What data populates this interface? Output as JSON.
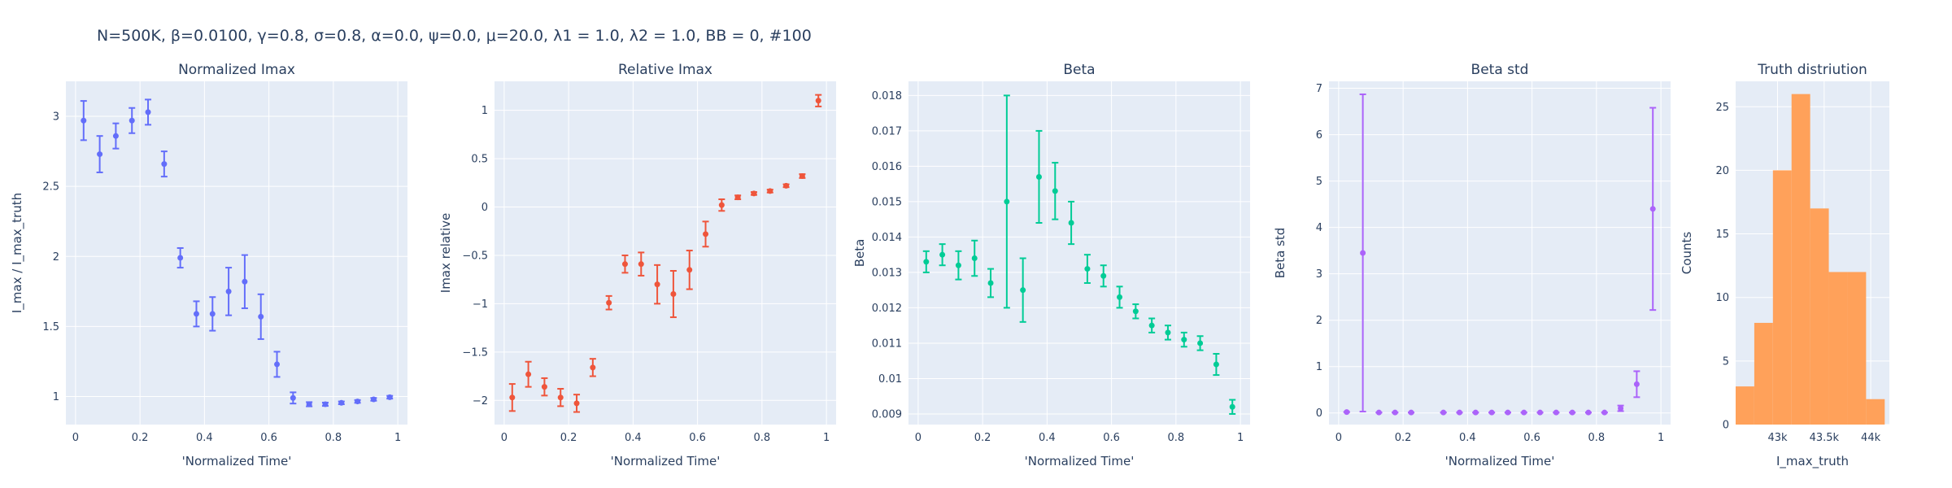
{
  "figure": {
    "title": "N=500K, β=0.0100, γ=0.8, σ=0.8,  α=0.0, ψ=0.0, μ=20.0, λ1 = 1.0, λ2 = 1.0, BB = 0, #100"
  },
  "chart_data": [
    {
      "type": "scatter",
      "title": "Normalized Imax",
      "xlabel": "'Normalized Time'",
      "ylabel": "I_max / I_max_truth",
      "color": "#636efa",
      "xlim": [
        -0.03,
        1.03
      ],
      "ylim": [
        0.8,
        3.25
      ],
      "xticks": [
        0,
        0.2,
        0.4,
        0.6,
        0.8,
        1
      ],
      "xtick_labels": [
        "0",
        "0.2",
        "0.4",
        "0.6",
        "0.8",
        "1"
      ],
      "yticks": [
        1,
        1.5,
        2,
        2.5,
        3
      ],
      "ytick_labels": [
        "1",
        "1.5",
        "2",
        "2.5",
        "3"
      ],
      "x": [
        0.025,
        0.075,
        0.125,
        0.175,
        0.225,
        0.275,
        0.325,
        0.375,
        0.425,
        0.475,
        0.525,
        0.575,
        0.625,
        0.675,
        0.725,
        0.775,
        0.825,
        0.875,
        0.925,
        0.975
      ],
      "y": [
        2.97,
        2.73,
        2.86,
        2.97,
        3.03,
        2.66,
        1.99,
        1.59,
        1.59,
        1.75,
        1.82,
        1.57,
        1.23,
        0.99,
        0.945,
        0.945,
        0.955,
        0.965,
        0.98,
        0.995
      ],
      "err": [
        0.14,
        0.13,
        0.09,
        0.09,
        0.09,
        0.09,
        0.07,
        0.09,
        0.12,
        0.17,
        0.19,
        0.16,
        0.09,
        0.04,
        0.015,
        0.012,
        0.01,
        0.01,
        0.01,
        0.01
      ]
    },
    {
      "type": "scatter",
      "title": "Relative Imax",
      "xlabel": "'Normalized Time'",
      "ylabel": "Imax relative",
      "color": "#ef553b",
      "xlim": [
        -0.03,
        1.03
      ],
      "ylim": [
        -2.25,
        1.3
      ],
      "xticks": [
        0,
        0.2,
        0.4,
        0.6,
        0.8,
        1
      ],
      "xtick_labels": [
        "0",
        "0.2",
        "0.4",
        "0.6",
        "0.8",
        "1"
      ],
      "yticks": [
        -2,
        -1.5,
        -1,
        -0.5,
        0,
        0.5,
        1
      ],
      "ytick_labels": [
        "−2",
        "−1.5",
        "−1",
        "−0.5",
        "0",
        "0.5",
        "1"
      ],
      "x": [
        0.025,
        0.075,
        0.125,
        0.175,
        0.225,
        0.275,
        0.325,
        0.375,
        0.425,
        0.475,
        0.525,
        0.575,
        0.625,
        0.675,
        0.725,
        0.775,
        0.825,
        0.875,
        0.925,
        0.975
      ],
      "y": [
        -1.97,
        -1.73,
        -1.86,
        -1.97,
        -2.03,
        -1.66,
        -0.99,
        -0.59,
        -0.59,
        -0.8,
        -0.9,
        -0.65,
        -0.28,
        0.02,
        0.1,
        0.14,
        0.165,
        0.22,
        0.32,
        1.1
      ],
      "err": [
        0.14,
        0.13,
        0.09,
        0.09,
        0.09,
        0.09,
        0.07,
        0.09,
        0.12,
        0.2,
        0.24,
        0.2,
        0.13,
        0.06,
        0.02,
        0.015,
        0.015,
        0.015,
        0.02,
        0.06
      ]
    },
    {
      "type": "scatter",
      "title": "Beta",
      "xlabel": "'Normalized Time'",
      "ylabel": "Beta",
      "color": "#00cc96",
      "xlim": [
        -0.03,
        1.03
      ],
      "ylim": [
        0.0087,
        0.0184
      ],
      "xticks": [
        0,
        0.2,
        0.4,
        0.6,
        0.8,
        1
      ],
      "xtick_labels": [
        "0",
        "0.2",
        "0.4",
        "0.6",
        "0.8",
        "1"
      ],
      "yticks": [
        0.009,
        0.01,
        0.011,
        0.012,
        0.013,
        0.014,
        0.015,
        0.016,
        0.017,
        0.018
      ],
      "ytick_labels": [
        "0.009",
        "0.01",
        "0.011",
        "0.012",
        "0.013",
        "0.014",
        "0.015",
        "0.016",
        "0.017",
        "0.018"
      ],
      "x": [
        0.025,
        0.075,
        0.125,
        0.175,
        0.225,
        0.275,
        0.325,
        0.375,
        0.425,
        0.475,
        0.525,
        0.575,
        0.625,
        0.675,
        0.725,
        0.775,
        0.825,
        0.875,
        0.925,
        0.975
      ],
      "y": [
        0.0133,
        0.0135,
        0.0132,
        0.0134,
        0.0127,
        0.015,
        0.0125,
        0.0157,
        0.0153,
        0.0144,
        0.0131,
        0.0129,
        0.0123,
        0.0119,
        0.0115,
        0.0113,
        0.0111,
        0.011,
        0.0104,
        0.0092
      ],
      "err": [
        0.0003,
        0.0003,
        0.0004,
        0.0005,
        0.0004,
        0.003,
        0.0009,
        0.0013,
        0.0008,
        0.0006,
        0.0004,
        0.0003,
        0.0003,
        0.0002,
        0.0002,
        0.0002,
        0.0002,
        0.0002,
        0.0003,
        0.0002
      ]
    },
    {
      "type": "scatter",
      "title": "Beta std",
      "xlabel": "'Normalized Time'",
      "ylabel": "Beta std",
      "color": "#ab63fa",
      "xlim": [
        -0.03,
        1.03
      ],
      "ylim": [
        -0.25,
        7.15
      ],
      "xticks": [
        0,
        0.2,
        0.4,
        0.6,
        0.8,
        1
      ],
      "xtick_labels": [
        "0",
        "0.2",
        "0.4",
        "0.6",
        "0.8",
        "1"
      ],
      "yticks": [
        0,
        1,
        2,
        3,
        4,
        5,
        6,
        7
      ],
      "ytick_labels": [
        "0",
        "1",
        "2",
        "3",
        "4",
        "5",
        "6",
        "7"
      ],
      "x": [
        0.025,
        0.075,
        0.125,
        0.175,
        0.225,
        0.325,
        0.375,
        0.425,
        0.475,
        0.525,
        0.575,
        0.625,
        0.675,
        0.725,
        0.775,
        0.825,
        0.875,
        0.925,
        0.975
      ],
      "y": [
        0.02,
        3.45,
        0.01,
        0.01,
        0.01,
        0.01,
        0.01,
        0.01,
        0.01,
        0.01,
        0.01,
        0.01,
        0.01,
        0.01,
        0.01,
        0.01,
        0.1,
        0.62,
        4.4
      ],
      "err": [
        0.0,
        3.42,
        0.0,
        0.0,
        0.0,
        0.0,
        0.0,
        0.0,
        0.0,
        0.0,
        0.0,
        0.0,
        0.0,
        0.0,
        0.0,
        0.0,
        0.06,
        0.28,
        2.18
      ]
    },
    {
      "type": "bar",
      "subtype": "histogram",
      "title": "Truth distriution",
      "xlabel": "I_max_truth",
      "ylabel": "Counts",
      "color": "#ffa15a",
      "xlim": [
        42550,
        44200
      ],
      "ylim": [
        0,
        27
      ],
      "xticks": [
        43000,
        43500,
        44000
      ],
      "xtick_labels": [
        "43k",
        "43.5k",
        "44k"
      ],
      "yticks": [
        0,
        5,
        10,
        15,
        20,
        25
      ],
      "ytick_labels": [
        "0",
        "5",
        "10",
        "15",
        "20",
        "25"
      ],
      "bins": [
        42550,
        42750,
        42950,
        43150,
        43350,
        43550,
        43750,
        43950,
        44150
      ],
      "counts": [
        3,
        8,
        20,
        26,
        17,
        12,
        12,
        2
      ]
    }
  ]
}
